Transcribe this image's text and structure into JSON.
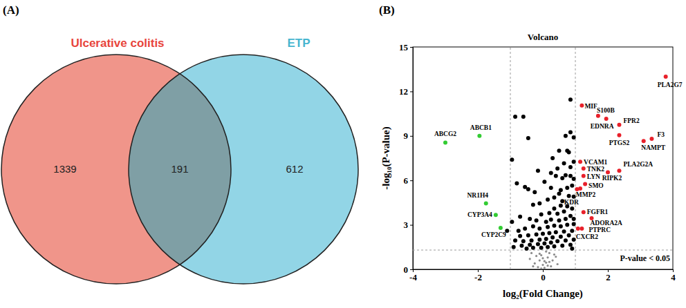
{
  "chart_data": [
    {
      "type": "venn",
      "annotations": [
        "(A)"
      ],
      "sets": [
        {
          "name": "Ulcerative colitis",
          "color": "#f0958a"
        },
        {
          "name": "ETP",
          "color": "#92d5e6"
        }
      ],
      "regions": [
        {
          "sets": [
            0
          ],
          "value": 1339
        },
        {
          "sets": [
            0,
            1
          ],
          "value": 191
        },
        {
          "sets": [
            1
          ],
          "value": 612
        }
      ]
    },
    {
      "type": "scatter",
      "title": "Volcano",
      "x_label": "log₂(Fold Change)",
      "y_label": "-log₁₀(P-value)",
      "annotations": [
        "(B)",
        "P-value < 0.05"
      ],
      "xlim": [
        -4,
        4
      ],
      "ylim": [
        0,
        15
      ],
      "xticks": [
        -4,
        -2,
        0,
        2,
        4
      ],
      "yticks": [
        0,
        3,
        6,
        9,
        12,
        15
      ],
      "grid": false,
      "x_thresholds": [
        -1,
        1
      ],
      "y_threshold": 1.301,
      "series": [
        {
          "color": "#e8202a",
          "marker": "circle",
          "labels": [
            "PLA2G7",
            "MIF",
            "S100B",
            "EDNRA",
            "FPR2",
            "PTGS2",
            "F3",
            "NAMPT",
            "VCAM1",
            "TNK2",
            "PLA2G2A",
            "RIPK2",
            "LYN",
            "SMO",
            "MMP2",
            "KDR",
            "FGFR1",
            "ADORA2A",
            "PTPRC",
            "CXCR2"
          ],
          "x": [
            3.78,
            1.2,
            1.7,
            1.95,
            2.35,
            2.35,
            3.35,
            3.1,
            1.15,
            1.25,
            2.35,
            2.0,
            1.25,
            1.3,
            1.15,
            1.05,
            1.25,
            1.5,
            1.2,
            1.08
          ],
          "values": [
            13.0,
            11.05,
            10.35,
            10.15,
            9.75,
            9.05,
            8.8,
            8.65,
            7.25,
            6.8,
            6.65,
            6.55,
            6.3,
            5.75,
            5.45,
            5.4,
            3.85,
            3.45,
            2.75,
            2.75
          ]
        },
        {
          "color": "#33cc33",
          "marker": "circle",
          "labels": [
            "ABCG2",
            "ABCB1",
            "NR1H4",
            "CYP3A4",
            "CYP2C9"
          ],
          "x": [
            -3.0,
            -1.95,
            -1.75,
            -1.45,
            -1.3
          ],
          "values": [
            8.55,
            9.0,
            4.45,
            3.67,
            2.8
          ]
        },
        {
          "color": "#000000",
          "marker": "circle",
          "x": [
            -0.85,
            -0.6,
            -0.45,
            -0.95,
            0.85,
            0.7,
            0.85,
            0.5,
            0.75,
            0.8,
            0.95,
            0.85,
            0.65,
            0.7,
            0.85,
            0.6,
            0.95,
            0.4,
            0.25,
            -0.15,
            -0.55,
            -0.45,
            -0.8,
            0.25,
            0.55,
            0.75,
            0.9,
            0.5,
            0.8,
            0.95,
            0.35,
            0.6,
            0.15,
            -0.1,
            -0.3,
            0.55,
            0.75,
            0.9,
            0.35,
            0.65,
            0.45,
            0.2,
            -0.05,
            0.85,
            0.95,
            0.7,
            0.5,
            0.25,
            0.1,
            -0.2,
            -0.4,
            0.95,
            0.75,
            0.55,
            0.35,
            0.15,
            -0.1,
            -0.3,
            -0.55,
            -0.75,
            0.9,
            0.65,
            0.4,
            0.2,
            0.0,
            -0.2,
            -0.45,
            -0.7,
            0.8,
            0.55,
            0.3,
            0.1,
            -0.1,
            -0.35,
            -0.6,
            -0.85,
            0.95,
            0.7,
            0.45,
            0.25,
            0.05,
            -0.15,
            -0.4,
            -0.65,
            0.85,
            0.6,
            0.35,
            0.15,
            -0.05,
            -0.3,
            -0.5,
            -0.9,
            0.9,
            -1.1,
            -0.95,
            -0.7,
            0.3,
            0.05,
            -0.25,
            0.45,
            0.95
          ],
          "values": [
            10.3,
            10.3,
            8.85,
            7.4,
            11.45,
            9.0,
            9.25,
            8.0,
            8.0,
            7.9,
            7.25,
            6.9,
            7.15,
            6.35,
            6.3,
            6.15,
            6.1,
            6.3,
            6.5,
            6.65,
            5.55,
            5.4,
            5.8,
            5.5,
            5.35,
            5.5,
            5.65,
            5.1,
            4.95,
            4.9,
            4.85,
            4.6,
            4.7,
            4.45,
            4.35,
            4.3,
            4.25,
            4.1,
            4.1,
            3.9,
            3.75,
            3.8,
            3.7,
            3.6,
            3.4,
            3.4,
            3.3,
            3.35,
            3.2,
            3.3,
            3.4,
            3.05,
            3.0,
            2.9,
            2.95,
            2.85,
            2.75,
            2.9,
            2.75,
            2.6,
            2.6,
            2.55,
            2.5,
            2.45,
            2.4,
            2.35,
            2.3,
            2.25,
            2.3,
            2.2,
            2.15,
            2.05,
            2.0,
            1.95,
            1.9,
            1.95,
            2.0,
            1.95,
            1.9,
            1.8,
            1.75,
            1.7,
            1.65,
            1.6,
            1.65,
            1.6,
            1.55,
            1.5,
            1.45,
            1.45,
            1.4,
            1.5,
            1.4,
            2.6,
            3.2,
            3.55,
            7.5,
            5.9,
            5.2,
            6.8,
            8.9
          ]
        },
        {
          "color": "#8c8c8c",
          "marker": "point",
          "x": [
            -0.35,
            -0.2,
            -0.1,
            0.0,
            0.05,
            0.1,
            0.15,
            0.2,
            -0.05,
            0.3,
            -0.25,
            0.25,
            -0.15,
            0.05,
            0.35,
            -0.4,
            0.45,
            0.1,
            -0.05,
            0.0,
            0.2,
            -0.3,
            0.4,
            -0.1,
            0.15
          ],
          "values": [
            1.1,
            0.9,
            0.6,
            0.3,
            0.1,
            0.45,
            0.8,
            1.1,
            0.95,
            0.6,
            0.4,
            0.2,
            0.15,
            0.55,
            1.0,
            0.7,
            0.35,
            1.2,
            0.05,
            0.75,
            0.5,
            0.2,
            0.85,
            1.05,
            0.25
          ]
        }
      ]
    }
  ]
}
